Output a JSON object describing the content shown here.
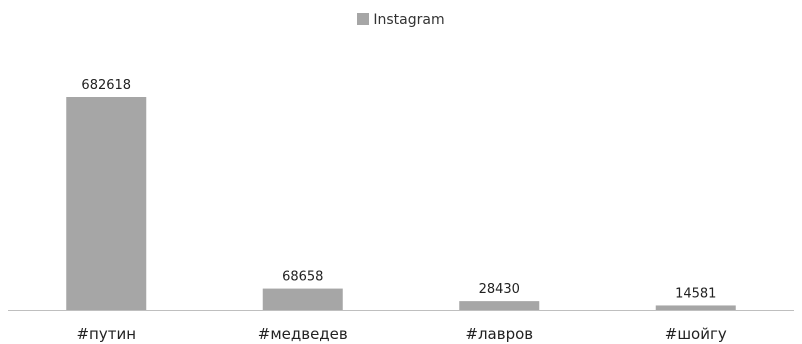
{
  "chart_data": {
    "type": "bar",
    "categories": [
      "#путин",
      "#медведев",
      "#лавров",
      "#шойгу"
    ],
    "series": [
      {
        "name": "Instagram",
        "values": [
          682618,
          68658,
          28430,
          14581
        ],
        "color": "#a6a6a6"
      }
    ],
    "data_labels": [
      "682618",
      "68658",
      "28430",
      "14581"
    ],
    "ylim": [
      0,
      682618
    ],
    "grid": false,
    "legend": "top-center"
  }
}
